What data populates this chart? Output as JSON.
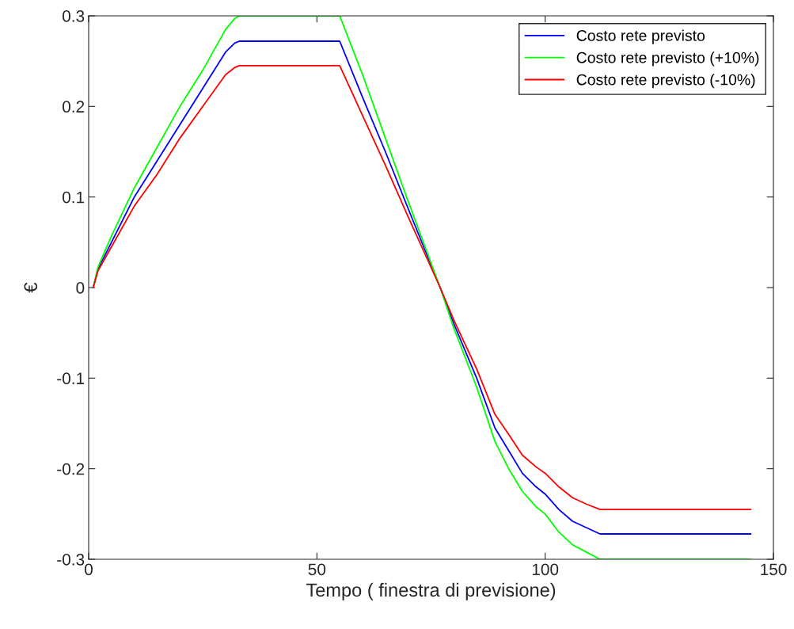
{
  "chart_data": {
    "type": "line",
    "xlabel": "Tempo ( finestra di previsione)",
    "ylabel": "€",
    "xlim": [
      0,
      150
    ],
    "xticks": [
      0,
      50,
      100,
      150
    ],
    "ylim": [
      -0.3,
      0.3
    ],
    "yticks": [
      -0.3,
      -0.2,
      -0.1,
      0,
      0.1,
      0.2,
      0.3
    ],
    "grid": false,
    "legend": "top right",
    "line_style": "solid",
    "marker": "none",
    "x": [
      1,
      2,
      5,
      10,
      15,
      20,
      25,
      30,
      32,
      33,
      55,
      60,
      65,
      70,
      77,
      80,
      85,
      89,
      92,
      95,
      98,
      100,
      103,
      106,
      109,
      112,
      145
    ],
    "series": [
      {
        "name": "Costo rete previsto",
        "color": "#0000ff",
        "values": [
          0,
          0.02,
          0.05,
          0.1,
          0.14,
          0.18,
          0.22,
          0.26,
          0.27,
          0.272,
          0.272,
          0.21,
          0.15,
          0.087,
          0,
          -0.04,
          -0.1,
          -0.155,
          -0.18,
          -0.205,
          -0.22,
          -0.228,
          -0.245,
          -0.258,
          -0.265,
          -0.272,
          -0.272
        ]
      },
      {
        "name": "Costo rete previsto (+10%)",
        "color": "#00ff00",
        "values": [
          0,
          0.022,
          0.057,
          0.11,
          0.155,
          0.2,
          0.24,
          0.285,
          0.297,
          0.3,
          0.3,
          0.235,
          0.165,
          0.095,
          0,
          -0.045,
          -0.11,
          -0.17,
          -0.2,
          -0.225,
          -0.242,
          -0.25,
          -0.27,
          -0.284,
          -0.292,
          -0.3,
          -0.3
        ]
      },
      {
        "name": "Costo rete previsto (-10%)",
        "color": "#ff0000",
        "values": [
          0,
          0.018,
          0.045,
          0.09,
          0.125,
          0.165,
          0.2,
          0.235,
          0.243,
          0.245,
          0.245,
          0.19,
          0.135,
          0.078,
          0,
          -0.036,
          -0.09,
          -0.14,
          -0.162,
          -0.185,
          -0.198,
          -0.205,
          -0.22,
          -0.232,
          -0.239,
          -0.245,
          -0.245
        ]
      }
    ]
  }
}
